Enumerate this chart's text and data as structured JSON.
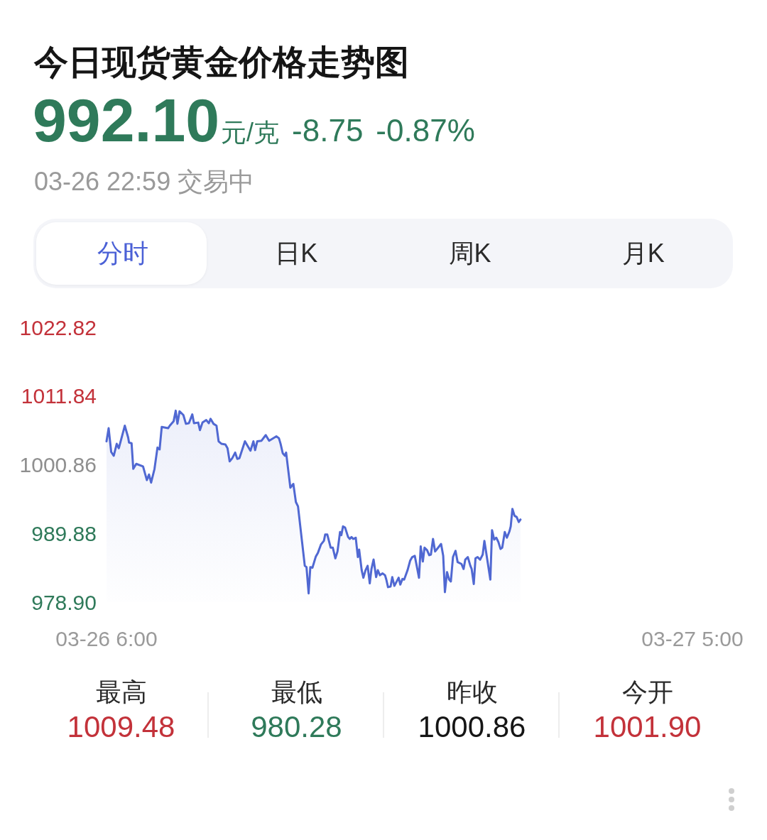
{
  "chart_data": {
    "type": "area",
    "title": "今日现货黄金价格走势图",
    "annotations": [
      "992.10",
      "元/克",
      "-8.75",
      "-0.87%",
      "03-26 22:59 交易中",
      "分时",
      "日K",
      "周K",
      "月K",
      "最高",
      "1009.48",
      "最低",
      "980.28",
      "昨收",
      "1000.86",
      "今开",
      "1001.90"
    ],
    "xlim": [
      "--03-26T06:00",
      "--03-27T05:00"
    ],
    "xticks": [
      {
        "value": "--03-26T06:00",
        "label": "03-26 6:00"
      },
      {
        "value": "--03-27T05:00",
        "label": "03-27 5:00"
      }
    ],
    "ylim": [
      978.9,
      1022.82
    ],
    "yticks": [
      1022.82,
      1011.84,
      1000.86,
      989.88,
      {
        "value": 978.9,
        "label": "978.90"
      }
    ],
    "series": [
      {
        "color": "#5068d2",
        "x": [
          "--03-26T06:00",
          "--03-26T06:05",
          "--03-26T06:11",
          "--03-26T06:17",
          "--03-26T06:24",
          "--03-26T06:29",
          "--03-26T06:43",
          "--03-26T06:51",
          "--03-26T06:53",
          "--03-26T06:59",
          "--03-26T07:03",
          "--03-26T07:10",
          "--03-26T07:26",
          "--03-26T07:35",
          "--03-26T07:40",
          "--03-26T07:45",
          "--03-26T07:53",
          "--03-26T08:00",
          "--03-26T08:05",
          "--03-26T08:10",
          "--03-26T08:25",
          "--03-26T08:29",
          "--03-26T08:38",
          "--03-26T08:43",
          "--03-26T08:47",
          "--03-26T08:52",
          "--03-26T09:01",
          "--03-26T09:07",
          "--03-26T09:14",
          "--03-26T09:22",
          "--03-26T09:26",
          "--03-26T09:36",
          "--03-26T09:40",
          "--03-26T09:46",
          "--03-26T09:55",
          "--03-26T10:01",
          "--03-26T10:05",
          "--03-26T10:12",
          "--03-26T10:19",
          "--03-26T10:24",
          "--03-26T10:31",
          "--03-26T10:40",
          "--03-26T10:45",
          "--03-26T10:50",
          "--03-26T10:56",
          "--03-26T11:03",
          "--03-26T11:08",
          "--03-26T11:13",
          "--03-26T11:26",
          "--03-26T11:39",
          "--03-26T11:46",
          "--03-26T11:50",
          "--03-26T11:55",
          "--03-26T12:05",
          "--03-26T12:15",
          "--03-26T12:23",
          "--03-26T12:40",
          "--03-26T12:46",
          "--03-26T12:50",
          "--03-26T12:55",
          "--03-26T13:00",
          "--03-26T13:03",
          "--03-26T13:13",
          "--03-26T13:20",
          "--03-26T13:26",
          "--03-26T13:31",
          "--03-26T13:47",
          "--03-26T13:51",
          "--03-26T13:56",
          "--03-26T14:00",
          "--03-26T14:05",
          "--03-26T14:13",
          "--03-26T14:18",
          "--03-26T14:25",
          "--03-26T14:32",
          "--03-26T14:35",
          "--03-26T14:40",
          "--03-26T14:48",
          "--03-26T14:53",
          "--03-26T14:59",
          "--03-26T15:04",
          "--03-26T15:10",
          "--03-26T15:13",
          "--03-26T15:17",
          "--03-26T15:22",
          "--03-26T15:29",
          "--03-26T15:33",
          "--03-26T15:37",
          "--03-26T15:41",
          "--03-26T15:47",
          "--03-26T15:52",
          "--03-26T15:55",
          "--03-26T16:01",
          "--03-26T16:05",
          "--03-26T16:10",
          "--03-26T16:15",
          "--03-26T16:20",
          "--03-26T16:24",
          "--03-26T16:29",
          "--03-26T16:35",
          "--03-26T16:39",
          "--03-26T16:44",
          "--03-26T16:50",
          "--03-26T16:56",
          "--03-26T16:59",
          "--03-26T17:03",
          "--03-26T17:09",
          "--03-26T17:13",
          "--03-26T17:18",
          "--03-26T17:28",
          "--03-26T17:32",
          "--03-26T17:37",
          "--03-26T17:41",
          "--03-26T17:49",
          "--03-26T17:55",
          "--03-26T18:00",
          "--03-26T18:06",
          "--03-26T18:16",
          "--03-26T18:20",
          "--03-26T18:25",
          "--03-26T18:29",
          "--03-26T18:35",
          "--03-26T18:40",
          "--03-26T18:44",
          "--03-26T18:49",
          "--03-26T18:54",
          "--03-26T19:08",
          "--03-26T19:13",
          "--03-26T19:17",
          "--03-26T19:22",
          "--03-26T19:27",
          "--03-26T19:31",
          "--03-26T19:36",
          "--03-26T19:42",
          "--03-26T19:47",
          "--03-26T19:56",
          "--03-26T20:01",
          "--03-26T20:05",
          "--03-26T20:11",
          "--03-26T20:17",
          "--03-26T20:20",
          "--03-26T20:25",
          "--03-26T20:29",
          "--03-26T20:34",
          "--03-26T20:40",
          "--03-26T20:46",
          "--03-26T20:50",
          "--03-26T21:04",
          "--03-26T21:08",
          "--03-26T21:13",
          "--03-26T21:18",
          "--03-26T21:23",
          "--03-26T21:28",
          "--03-26T21:32",
          "--03-26T21:38",
          "--03-26T21:43",
          "--03-26T21:49",
          "--03-26T21:52",
          "--03-26T21:56",
          "--03-26T22:01",
          "--03-26T22:06",
          "--03-26T22:11",
          "--03-26T22:15"
        ],
        "values": [
          1004.6,
          1006.7,
          1002.9,
          1002.3,
          1004.2,
          1003.5,
          1007.1,
          1005.2,
          1004.4,
          1004.3,
          1000.2,
          1001.0,
          1000.6,
          998.4,
          999.3,
          998.0,
          1000.2,
          1003.6,
          1003.3,
          1006.9,
          1006.7,
          1007.1,
          1007.8,
          1009.5,
          1007.4,
          1009.4,
          1008.8,
          1007.4,
          1007.5,
          1008.9,
          1007.5,
          1007.6,
          1006.4,
          1007.6,
          1008.0,
          1007.5,
          1008.2,
          1007.4,
          1007.1,
          1004.6,
          1004.2,
          1004.1,
          1003.5,
          1001.4,
          1001.9,
          1002.8,
          1001.8,
          1001.9,
          1004.6,
          1003.1,
          1004.6,
          1003.2,
          1004.6,
          1004.7,
          1005.6,
          1004.7,
          1005.4,
          1005.1,
          1004.2,
          1002.7,
          1002.3,
          1002.8,
          997.2,
          997.8,
          994.9,
          994.2,
          984.7,
          984.5,
          980.3,
          984.5,
          984.4,
          986.2,
          986.8,
          988.1,
          988.7,
          989.7,
          989.7,
          987.6,
          987.6,
          985.9,
          987.0,
          990.1,
          989.6,
          991.0,
          990.8,
          989.3,
          989.0,
          989.3,
          989.0,
          989.2,
          986.1,
          987.3,
          984.0,
          982.8,
          984.0,
          984.7,
          981.9,
          984.2,
          985.7,
          982.9,
          984.0,
          983.2,
          983.5,
          983.2,
          982.5,
          981.3,
          981.4,
          982.9,
          981.5,
          982.8,
          981.7,
          982.6,
          982.5,
          984.0,
          985.5,
          986.1,
          986.3,
          982.8,
          987.8,
          985.4,
          987.6,
          987.2,
          986.4,
          986.5,
          989.0,
          987.0,
          988.2,
          986.3,
          980.5,
          983.7,
          982.5,
          982.2,
          986.1,
          987.1,
          985.3,
          985.0,
          984.2,
          985.7,
          986.1,
          984.7,
          984.2,
          981.8,
          985.9,
          986.1,
          985.7,
          986.5,
          988.7,
          982.5,
          990.4,
          988.9,
          989.2,
          988.5,
          987.4,
          987.6,
          990.1,
          989.2,
          990.2,
          991.0,
          993.8,
          992.7,
          992.5,
          991.7,
          992.1
        ]
      }
    ]
  }
}
